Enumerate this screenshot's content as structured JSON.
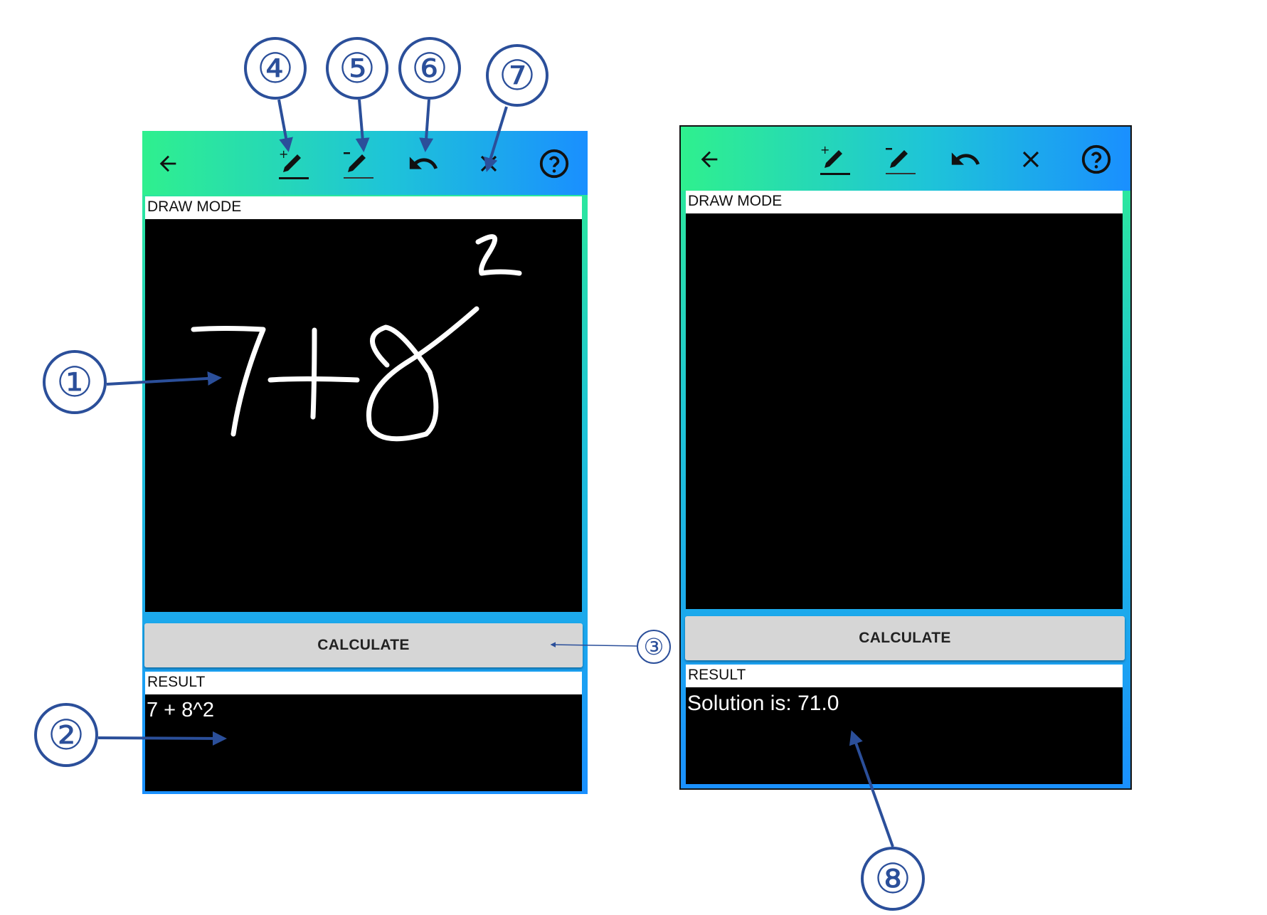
{
  "left_screen": {
    "section_draw_label": "DRAW MODE",
    "calculate_label": "CALCULATE",
    "section_result_label": "RESULT",
    "result_text": "7 + 8^2"
  },
  "right_screen": {
    "section_draw_label": "DRAW MODE",
    "calculate_label": "CALCULATE",
    "section_result_label": "RESULT",
    "result_text": "Solution is: 71.0"
  },
  "toolbar_icons": [
    "back-arrow-icon",
    "pen-plus-icon",
    "pen-minus-icon",
    "undo-icon",
    "close-icon",
    "help-icon"
  ],
  "callouts": {
    "c1": "①",
    "c2": "②",
    "c3": "③",
    "c4": "④",
    "c5": "⑤",
    "c6": "⑥",
    "c7": "⑦",
    "c8": "⑧"
  },
  "colors": {
    "gradient_green": "#2ff08e",
    "gradient_blue": "#1a8fff",
    "callout_blue": "#2b4f9a",
    "canvas": "#000000",
    "button_gray": "#d6d6d6"
  }
}
